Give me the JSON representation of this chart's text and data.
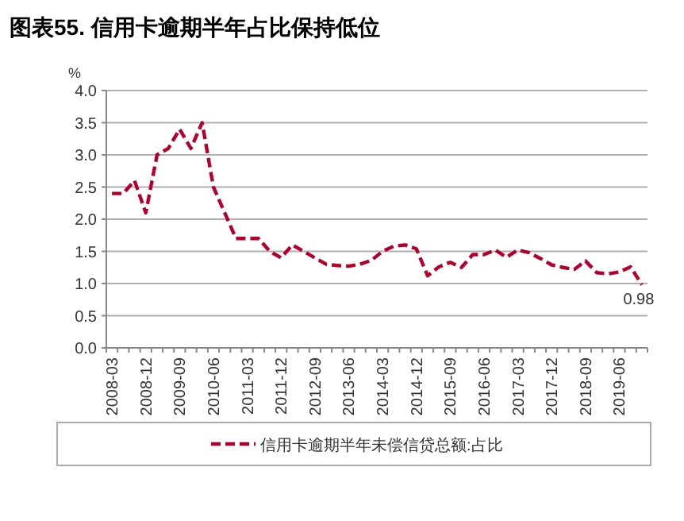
{
  "chart_data": {
    "type": "line",
    "title": "图表55. 信用卡逾期半年占比保持低位",
    "ylabel": "%",
    "categories": [
      "2008-03",
      null,
      null,
      "2008-12",
      null,
      null,
      "2009-09",
      null,
      null,
      "2010-06",
      null,
      null,
      "2011-03",
      null,
      null,
      "2011-12",
      null,
      null,
      "2012-09",
      null,
      null,
      "2013-06",
      null,
      null,
      "2014-03",
      null,
      null,
      "2014-12",
      null,
      null,
      "2015-09",
      null,
      null,
      "2016-06",
      null,
      null,
      "2017-03",
      null,
      null,
      "2017-12",
      null,
      null,
      "2018-09",
      null,
      null,
      "2019-06",
      null,
      null
    ],
    "series": [
      {
        "name": "信用卡逾期半年未偿信贷总额:占比",
        "color": "#b5002b",
        "values": [
          2.4,
          2.4,
          2.6,
          2.1,
          3.0,
          3.1,
          3.4,
          3.1,
          3.5,
          2.5,
          2.1,
          1.7,
          1.7,
          1.7,
          1.5,
          1.4,
          1.6,
          1.5,
          1.4,
          1.3,
          1.28,
          1.27,
          1.3,
          1.36,
          1.5,
          1.58,
          1.6,
          1.54,
          1.12,
          1.26,
          1.33,
          1.25,
          1.45,
          1.45,
          1.52,
          1.41,
          1.52,
          1.48,
          1.39,
          1.29,
          1.25,
          1.22,
          1.35,
          1.17,
          1.15,
          1.18,
          1.26,
          0.98
        ],
        "value_labels": [
          null,
          null,
          null,
          null,
          null,
          null,
          null,
          null,
          null,
          null,
          null,
          null,
          null,
          null,
          null,
          null,
          null,
          null,
          null,
          null,
          null,
          null,
          null,
          null,
          null,
          null,
          null,
          null,
          null,
          null,
          null,
          null,
          null,
          null,
          null,
          null,
          null,
          null,
          null,
          null,
          null,
          null,
          null,
          null,
          null,
          null,
          null,
          "0.98"
        ]
      }
    ],
    "ylim": [
      0,
      4
    ],
    "yticks": [
      "0.0",
      "0.5",
      "1.0",
      "1.5",
      "2.0",
      "2.5",
      "3.0",
      "3.5",
      "4.0"
    ],
    "grid": "y",
    "legend": "bottom",
    "line_style": "dashed"
  }
}
